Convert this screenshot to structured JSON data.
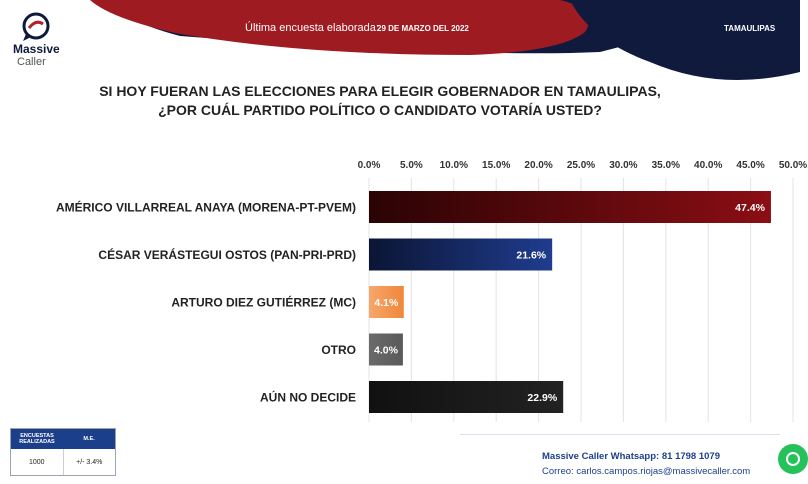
{
  "header": {
    "label": "Última encuesta elaborada:",
    "date": "29 DE MARZO DEL 2022",
    "region": "TAMAULIPAS",
    "colors": {
      "red": "#9e1b22",
      "navy": "#0f1a3d"
    }
  },
  "logo": {
    "line1": "Massive",
    "line2": "Caller",
    "icon": "speech-bubble-icon"
  },
  "question": {
    "line1": "SI HOY FUERAN LAS ELECCIONES PARA ELEGIR GOBERNADOR EN TAMAULIPAS,",
    "line2": "¿POR CUÁL PARTIDO POLÍTICO O CANDIDATO VOTARÍA USTED?"
  },
  "chart_data": {
    "type": "bar",
    "orientation": "horizontal",
    "categories": [
      "AMÉRICO VILLARREAL ANAYA (MORENA-PT-PVEM)",
      "CÉSAR VERÁSTEGUI OSTOS (PAN-PRI-PRD)",
      "ARTURO DIEZ GUTIÉRREZ (MC)",
      "OTRO",
      "AÚN NO DECIDE"
    ],
    "values": [
      47.4,
      21.6,
      4.1,
      4.0,
      22.9
    ],
    "value_labels": [
      "47.4%",
      "21.6%",
      "4.1%",
      "4.0%",
      "22.9%"
    ],
    "xlim": [
      0,
      50
    ],
    "ticks": [
      0,
      5,
      10,
      15,
      20,
      25,
      30,
      35,
      40,
      45,
      50
    ],
    "tick_labels": [
      "0.0%",
      "5.0%",
      "10.0%",
      "15.0%",
      "20.0%",
      "25.0%",
      "30.0%",
      "35.0%",
      "40.0%",
      "45.0%",
      "50.0%"
    ],
    "axis_position": "top",
    "grid": true,
    "colors": [
      "#8b0e14",
      "#1f3c8e",
      "#f0873a",
      "#5a5a5a",
      "#111111"
    ]
  },
  "info_box": {
    "headers": [
      "ENCUESTAS REALIZADAS",
      "M.E."
    ],
    "values": [
      "1000",
      "+/- 3.4%"
    ]
  },
  "contact": {
    "whatsapp_label": "Massive Caller Whatsapp:",
    "whatsapp_number": "81 1798 1079",
    "email_label": "Correo:",
    "email": "carlos.campos.riojas@massivecaller.com"
  }
}
